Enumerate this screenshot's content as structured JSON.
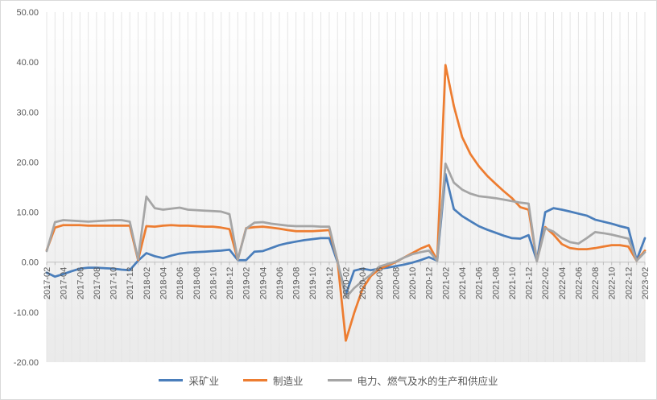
{
  "chart": {
    "background": "#ffffff",
    "plot_fill_top": "#ffffff",
    "plot_fill_bottom": "#eaeaea",
    "gridline_color": "#e5e5e5",
    "axis_line_color": "#bfbfbf",
    "axis_text_color": "#595959",
    "border_color": "#d9d9d9"
  },
  "chart_data": {
    "type": "line",
    "title": "",
    "xlabel": "",
    "ylabel": "",
    "ylim": [
      -20,
      50
    ],
    "yticks": [
      "50.00",
      "40.00",
      "30.00",
      "20.00",
      "10.00",
      "0.00",
      "-10.00",
      "-20.00"
    ],
    "ytick_values": [
      50,
      40,
      30,
      20,
      10,
      0,
      -10,
      -20
    ],
    "grid": "vertical-monthly",
    "legend_position": "bottom",
    "x_tick_every": 2,
    "x": [
      "2017-02",
      "2017-03",
      "2017-04",
      "2017-05",
      "2017-06",
      "2017-07",
      "2017-08",
      "2017-09",
      "2017-10",
      "2017-11",
      "2017-12",
      "2018-01",
      "2018-02",
      "2018-03",
      "2018-04",
      "2018-05",
      "2018-06",
      "2018-07",
      "2018-08",
      "2018-09",
      "2018-10",
      "2018-11",
      "2018-12",
      "2019-01",
      "2019-02",
      "2019-03",
      "2019-04",
      "2019-05",
      "2019-06",
      "2019-07",
      "2019-08",
      "2019-09",
      "2019-10",
      "2019-11",
      "2019-12",
      "2020-01",
      "2020-02",
      "2020-03",
      "2020-04",
      "2020-05",
      "2020-06",
      "2020-07",
      "2020-08",
      "2020-09",
      "2020-10",
      "2020-11",
      "2020-12",
      "2021-01",
      "2021-02",
      "2021-03",
      "2021-04",
      "2021-05",
      "2021-06",
      "2021-07",
      "2021-08",
      "2021-09",
      "2021-10",
      "2021-11",
      "2021-12",
      "2022-01",
      "2022-02",
      "2022-03",
      "2022-04",
      "2022-05",
      "2022-06",
      "2022-07",
      "2022-08",
      "2022-09",
      "2022-10",
      "2022-11",
      "2022-12",
      "2023-01",
      "2023-02"
    ],
    "series": [
      {
        "key": "mining",
        "name": "采矿业",
        "color": "#4a7ebb",
        "values": [
          -2.1,
          -2.9,
          -2.4,
          -1.8,
          -1.3,
          -1.1,
          -1.1,
          -1.2,
          -1.3,
          -1.5,
          -1.6,
          0.3,
          1.8,
          1.2,
          0.8,
          1.3,
          1.7,
          1.9,
          2.0,
          2.1,
          2.2,
          2.3,
          2.5,
          0.4,
          0.4,
          2.1,
          2.2,
          2.8,
          3.4,
          3.8,
          4.1,
          4.4,
          4.6,
          4.8,
          4.8,
          0.0,
          -6.5,
          -1.7,
          -1.3,
          -1.6,
          -1.3,
          -1.1,
          -0.8,
          -0.5,
          -0.1,
          0.4,
          1.0,
          0.3,
          17.6,
          10.6,
          9.2,
          8.2,
          7.2,
          6.5,
          5.9,
          5.3,
          4.8,
          4.7,
          5.4,
          0.3,
          10.0,
          10.8,
          10.5,
          10.1,
          9.7,
          9.3,
          8.5,
          8.1,
          7.7,
          7.2,
          6.8,
          0.4,
          4.8
        ]
      },
      {
        "key": "manufacturing",
        "name": "制造业",
        "color": "#ed7d31",
        "values": [
          2.4,
          6.9,
          7.4,
          7.4,
          7.4,
          7.3,
          7.3,
          7.3,
          7.3,
          7.3,
          7.3,
          0.4,
          7.2,
          7.1,
          7.3,
          7.4,
          7.3,
          7.3,
          7.2,
          7.1,
          7.1,
          6.9,
          6.6,
          0.5,
          6.8,
          7.0,
          7.1,
          6.9,
          6.7,
          6.4,
          6.2,
          6.2,
          6.2,
          6.3,
          6.4,
          0.3,
          -15.7,
          -10.2,
          -5.4,
          -2.8,
          -1.4,
          -0.7,
          0.0,
          0.9,
          1.8,
          2.7,
          3.4,
          0.4,
          39.4,
          31.2,
          25.0,
          21.6,
          19.2,
          17.3,
          15.7,
          14.2,
          12.8,
          11.0,
          10.5,
          0.3,
          7.0,
          5.5,
          3.6,
          2.8,
          2.6,
          2.6,
          2.8,
          3.1,
          3.4,
          3.4,
          3.1,
          0.3,
          2.3
        ]
      },
      {
        "key": "utilities",
        "name": "电力、燃气及水的生产和供应业",
        "color": "#a5a5a5",
        "values": [
          2.2,
          8.0,
          8.4,
          8.3,
          8.2,
          8.1,
          8.2,
          8.3,
          8.4,
          8.4,
          8.1,
          0.6,
          13.1,
          10.8,
          10.5,
          10.7,
          10.9,
          10.5,
          10.4,
          10.3,
          10.2,
          10.1,
          9.6,
          0.5,
          6.7,
          7.9,
          8.0,
          7.7,
          7.5,
          7.3,
          7.2,
          7.2,
          7.2,
          7.1,
          7.1,
          0.2,
          -7.1,
          -5.2,
          -3.8,
          -2.5,
          -0.9,
          -0.4,
          0.1,
          0.9,
          1.6,
          2.0,
          2.3,
          0.3,
          19.7,
          15.9,
          14.5,
          13.7,
          13.2,
          13.0,
          12.8,
          12.5,
          12.2,
          11.9,
          11.7,
          0.2,
          6.8,
          6.1,
          4.8,
          4.0,
          3.7,
          4.8,
          6.0,
          5.8,
          5.5,
          5.1,
          4.7,
          0.3,
          2.0
        ]
      }
    ]
  }
}
